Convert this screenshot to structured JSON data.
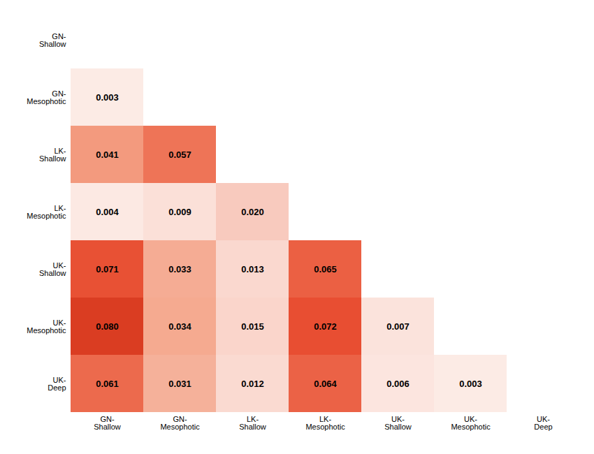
{
  "chart_data": {
    "type": "heatmap",
    "categories": [
      "GN-\nShallow",
      "GN-\nMesophotic",
      "LK-\nShallow",
      "LK-\nMesophotic",
      "UK-\nShallow",
      "UK-\nMesophotic",
      "UK-\nDeep"
    ],
    "matrix": [
      [
        null,
        null,
        null,
        null,
        null,
        null,
        null
      ],
      [
        0.003,
        null,
        null,
        null,
        null,
        null,
        null
      ],
      [
        0.041,
        0.057,
        null,
        null,
        null,
        null,
        null
      ],
      [
        0.004,
        0.009,
        0.02,
        null,
        null,
        null,
        null
      ],
      [
        0.071,
        0.033,
        0.013,
        0.065,
        null,
        null,
        null
      ],
      [
        0.08,
        0.034,
        0.015,
        0.072,
        0.007,
        null,
        null
      ],
      [
        0.061,
        0.031,
        0.012,
        0.064,
        0.006,
        0.003,
        null
      ]
    ],
    "value_labels": [
      [
        null,
        null,
        null,
        null,
        null,
        null,
        null
      ],
      [
        "0.003",
        null,
        null,
        null,
        null,
        null,
        null
      ],
      [
        "0.041",
        "0.057",
        null,
        null,
        null,
        null,
        null
      ],
      [
        "0.004",
        "0.009",
        "0.020",
        null,
        null,
        null,
        null
      ],
      [
        "0.071",
        "0.033",
        "0.013",
        "0.065",
        null,
        null,
        null
      ],
      [
        "0.080",
        "0.034",
        "0.015",
        "0.072",
        "0.007",
        null,
        null
      ],
      [
        "0.061",
        "0.031",
        "0.012",
        "0.064",
        "0.006",
        "0.003",
        null
      ]
    ],
    "color_scale": {
      "domain": [
        0,
        0.09
      ],
      "range": [
        "#fdf0ec",
        "#f9cfc4",
        "#f4a58a",
        "#ef7c5e",
        "#e84e32",
        "#c9280e"
      ]
    },
    "data_labels": true,
    "grid": false
  }
}
